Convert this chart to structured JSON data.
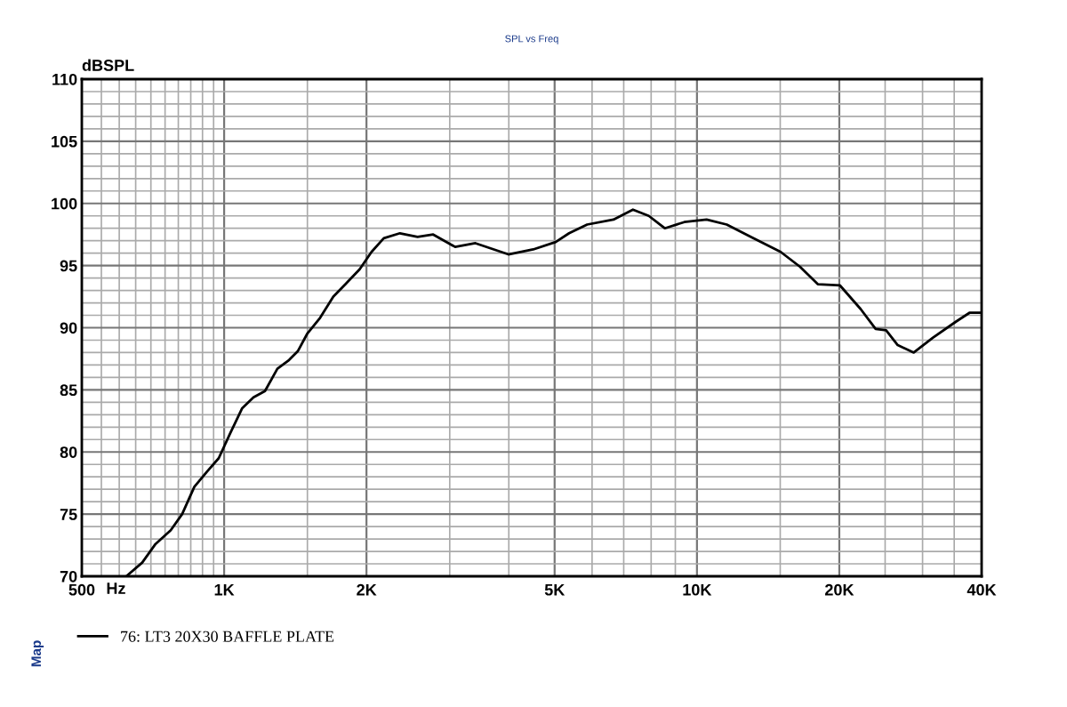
{
  "chart_data": {
    "type": "line",
    "title": "SPL vs Freq",
    "xlabel": "Hz",
    "ylabel": "dBSPL",
    "annotations": [
      "Map"
    ],
    "log": "x",
    "grid": true,
    "legend": "bottom left",
    "marker": "none",
    "line_style": "solid",
    "xlim": [
      500,
      40000
    ],
    "ylim": [
      70,
      110
    ],
    "xticks": [
      500,
      {
        "value": 550,
        "label": null
      },
      {
        "value": 600,
        "label": null
      },
      {
        "value": 650,
        "label": null
      },
      {
        "value": 700,
        "label": null
      },
      {
        "value": 750,
        "label": null
      },
      {
        "value": 800,
        "label": null
      },
      {
        "value": 850,
        "label": null
      },
      {
        "value": 900,
        "label": null
      },
      {
        "value": 950,
        "label": null
      },
      {
        "value": 1000,
        "label": "1K"
      },
      {
        "value": 1500,
        "label": null
      },
      {
        "value": 2000,
        "label": "2K"
      },
      {
        "value": 3000,
        "label": null
      },
      {
        "value": 4000,
        "label": null
      },
      {
        "value": 5000,
        "label": "5K"
      },
      {
        "value": 6000,
        "label": null
      },
      {
        "value": 7000,
        "label": null
      },
      {
        "value": 8000,
        "label": null
      },
      {
        "value": 9000,
        "label": null
      },
      {
        "value": 10000,
        "label": "10K"
      },
      {
        "value": 15000,
        "label": null
      },
      {
        "value": 20000,
        "label": "20K"
      },
      {
        "value": 25000,
        "label": null
      },
      {
        "value": 30000,
        "label": null
      },
      {
        "value": 35000,
        "label": null
      },
      {
        "value": 40000,
        "label": "40K"
      }
    ],
    "yticks": [
      70,
      {
        "value": 71,
        "label": null
      },
      {
        "value": 72,
        "label": null
      },
      {
        "value": 73,
        "label": null
      },
      {
        "value": 74,
        "label": null
      },
      75,
      {
        "value": 76,
        "label": null
      },
      {
        "value": 77,
        "label": null
      },
      {
        "value": 78,
        "label": null
      },
      {
        "value": 79,
        "label": null
      },
      80,
      {
        "value": 81,
        "label": null
      },
      {
        "value": 82,
        "label": null
      },
      {
        "value": 83,
        "label": null
      },
      {
        "value": 84,
        "label": null
      },
      85,
      {
        "value": 86,
        "label": null
      },
      {
        "value": 87,
        "label": null
      },
      {
        "value": 88,
        "label": null
      },
      {
        "value": 89,
        "label": null
      },
      90,
      {
        "value": 91,
        "label": null
      },
      {
        "value": 92,
        "label": null
      },
      {
        "value": 93,
        "label": null
      },
      {
        "value": 94,
        "label": null
      },
      95,
      {
        "value": 96,
        "label": null
      },
      {
        "value": 97,
        "label": null
      },
      {
        "value": 98,
        "label": null
      },
      {
        "value": 99,
        "label": null
      },
      100,
      {
        "value": 101,
        "label": null
      },
      {
        "value": 102,
        "label": null
      },
      {
        "value": 103,
        "label": null
      },
      {
        "value": 104,
        "label": null
      },
      105,
      {
        "value": 106,
        "label": null
      },
      {
        "value": 107,
        "label": null
      },
      {
        "value": 108,
        "label": null
      },
      {
        "value": 109,
        "label": null
      },
      110
    ],
    "series": [
      {
        "name": "76: LT3 20X30 BAFFLE PLATE",
        "color": "#000000",
        "x": [
          621,
          671,
          716,
          771,
          815,
          865,
          919,
          974,
          1027,
          1091,
          1154,
          1220,
          1296,
          1372,
          1431,
          1498,
          1596,
          1702,
          1815,
          1935,
          2050,
          2176,
          2354,
          2565,
          2768,
          3080,
          3400,
          3992,
          4505,
          5026,
          5365,
          5857,
          6658,
          7321,
          7909,
          8550,
          9400,
          10480,
          11560,
          13015,
          15030,
          16520,
          18010,
          20070,
          22190,
          23870,
          25120,
          26580,
          28740,
          31570,
          35340,
          37700,
          40000
        ],
        "values": [
          70,
          71.1,
          72.6,
          73.7,
          75.0,
          77.2,
          78.4,
          79.5,
          81.4,
          83.5,
          84.4,
          84.9,
          86.7,
          87.4,
          88.1,
          89.5,
          90.8,
          92.5,
          93.6,
          94.7,
          96.1,
          97.2,
          97.6,
          97.3,
          97.5,
          96.5,
          96.8,
          95.9,
          96.3,
          96.9,
          97.6,
          98.3,
          98.7,
          99.5,
          99.0,
          98.0,
          98.5,
          98.7,
          98.3,
          97.3,
          96.1,
          94.9,
          93.5,
          93.4,
          91.5,
          89.9,
          89.8,
          88.6,
          88.0,
          89.2,
          90.5,
          91.2,
          91.2
        ]
      }
    ]
  }
}
